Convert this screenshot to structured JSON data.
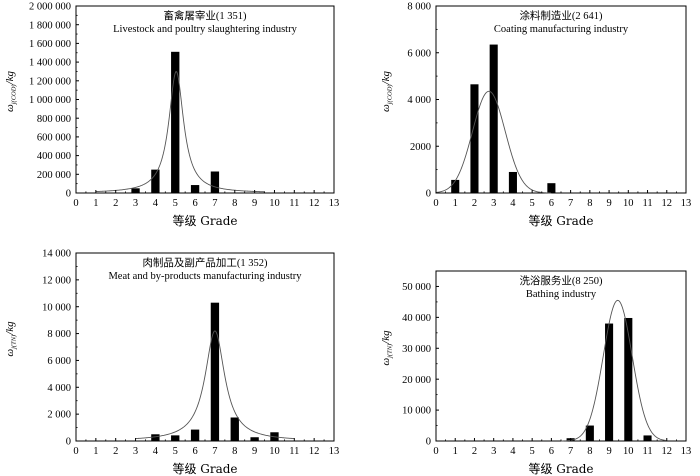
{
  "chart_data": [
    {
      "type": "bar",
      "annotation_cn": "畜禽屠宰业(1 351)",
      "annotation_en": "Livestock and poultry slaughtering industry",
      "xlabel": "等级 Grade",
      "ylabel_main": "ω",
      "ylabel_sub": "j(COD)",
      "ylabel_unit": "/kg",
      "xlim": [
        0,
        13
      ],
      "ylim": [
        0,
        2000000
      ],
      "xticks": [
        "0",
        "1",
        "2",
        "3",
        "4",
        "5",
        "6",
        "7",
        "8",
        "9",
        "10",
        "11",
        "12",
        "13"
      ],
      "yticks": [
        {
          "value": 0,
          "label": "0"
        },
        {
          "value": 200000,
          "label": "200 000"
        },
        {
          "value": 400000,
          "label": "400 000"
        },
        {
          "value": 600000,
          "label": "600 000"
        },
        {
          "value": 800000,
          "label": "800 000"
        },
        {
          "value": 1000000,
          "label": "1 000 000"
        },
        {
          "value": 1200000,
          "label": "1 200 000"
        },
        {
          "value": 1400000,
          "label": "1 400 000"
        },
        {
          "value": 1600000,
          "label": "1 600 000"
        },
        {
          "value": 1800000,
          "label": "1 800 000"
        },
        {
          "value": 2000000,
          "label": "2 000 000"
        }
      ],
      "bars": [
        {
          "x": 3,
          "value": 50000
        },
        {
          "x": 4,
          "value": 250000
        },
        {
          "x": 5,
          "value": 1510000
        },
        {
          "x": 6,
          "value": 85000
        },
        {
          "x": 7,
          "value": 230000
        }
      ],
      "curve": {
        "shape": "lorentzian",
        "center": 5.05,
        "peak": 1300000,
        "width": 0.45,
        "range": [
          1,
          9.5
        ]
      }
    },
    {
      "type": "bar",
      "annotation_cn": "涂料制造业(2 641)",
      "annotation_en": "Coating manufacturing industry",
      "xlabel": "等级 Grade",
      "ylabel_main": "ω",
      "ylabel_sub": "j(COD)",
      "ylabel_unit": "/kg",
      "xlim": [
        0,
        13
      ],
      "ylim": [
        0,
        8000
      ],
      "xticks": [
        "0",
        "1",
        "2",
        "3",
        "4",
        "5",
        "6",
        "7",
        "8",
        "9",
        "10",
        "11",
        "12",
        "13"
      ],
      "yticks": [
        {
          "value": 0,
          "label": "0"
        },
        {
          "value": 2000,
          "label": "2000"
        },
        {
          "value": 4000,
          "label": "4 000"
        },
        {
          "value": 6000,
          "label": "6 000"
        },
        {
          "value": 8000,
          "label": "8 000"
        }
      ],
      "bars": [
        {
          "x": 1,
          "value": 560
        },
        {
          "x": 2,
          "value": 4650
        },
        {
          "x": 3,
          "value": 6350
        },
        {
          "x": 4,
          "value": 900
        },
        {
          "x": 6,
          "value": 420
        }
      ],
      "curve": {
        "shape": "gaussian",
        "center": 2.75,
        "peak": 4350,
        "width": 0.85,
        "range": [
          0,
          6
        ]
      }
    },
    {
      "type": "bar",
      "annotation_cn": "肉制品及副产品加工(1 352)",
      "annotation_en": "Meat and by-products manufacturing industry",
      "xlabel": "等级 Grade",
      "ylabel_main": "ω",
      "ylabel_sub": "j(TN)",
      "ylabel_unit": "/kg",
      "xlim": [
        0,
        13
      ],
      "ylim": [
        0,
        14000
      ],
      "xticks": [
        "0",
        "1",
        "2",
        "3",
        "4",
        "5",
        "6",
        "7",
        "8",
        "9",
        "10",
        "11",
        "12",
        "13"
      ],
      "yticks": [
        {
          "value": 0,
          "label": "0"
        },
        {
          "value": 2000,
          "label": "2 000"
        },
        {
          "value": 4000,
          "label": "4 000"
        },
        {
          "value": 6000,
          "label": "6 000"
        },
        {
          "value": 8000,
          "label": "8 000"
        },
        {
          "value": 10000,
          "label": "10 000"
        },
        {
          "value": 12000,
          "label": "12 000"
        },
        {
          "value": 14000,
          "label": "14 000"
        }
      ],
      "bars": [
        {
          "x": 4,
          "value": 500
        },
        {
          "x": 5,
          "value": 420
        },
        {
          "x": 6,
          "value": 850
        },
        {
          "x": 7,
          "value": 10300
        },
        {
          "x": 8,
          "value": 1750
        },
        {
          "x": 9,
          "value": 280
        },
        {
          "x": 10,
          "value": 650
        }
      ],
      "curve": {
        "shape": "lorentzian",
        "center": 7.0,
        "peak": 8200,
        "width": 0.6,
        "range": [
          3,
          11
        ]
      }
    },
    {
      "type": "bar",
      "annotation_cn": "洗浴服务业(8 250)",
      "annotation_en": "Bathing industry",
      "xlabel": "等级 Grade",
      "ylabel_main": "ω",
      "ylabel_sub": "j(TN)",
      "ylabel_unit": "/kg",
      "xlim": [
        0,
        13
      ],
      "ylim": [
        0,
        55000
      ],
      "xticks": [
        "0",
        "1",
        "2",
        "3",
        "4",
        "5",
        "6",
        "7",
        "8",
        "9",
        "10",
        "11",
        "12",
        "13"
      ],
      "yticks": [
        {
          "value": 0,
          "label": "0"
        },
        {
          "value": 10000,
          "label": "10 000"
        },
        {
          "value": 20000,
          "label": "20 000"
        },
        {
          "value": 30000,
          "label": "30 000"
        },
        {
          "value": 40000,
          "label": "40 000"
        },
        {
          "value": 50000,
          "label": "50 000"
        }
      ],
      "bars": [
        {
          "x": 7,
          "value": 900
        },
        {
          "x": 8,
          "value": 5000
        },
        {
          "x": 9,
          "value": 38000
        },
        {
          "x": 10,
          "value": 39800
        },
        {
          "x": 11,
          "value": 1800
        }
      ],
      "curve": {
        "shape": "gaussian",
        "center": 9.45,
        "peak": 45500,
        "width": 0.75,
        "range": [
          6.5,
          12
        ]
      }
    }
  ]
}
